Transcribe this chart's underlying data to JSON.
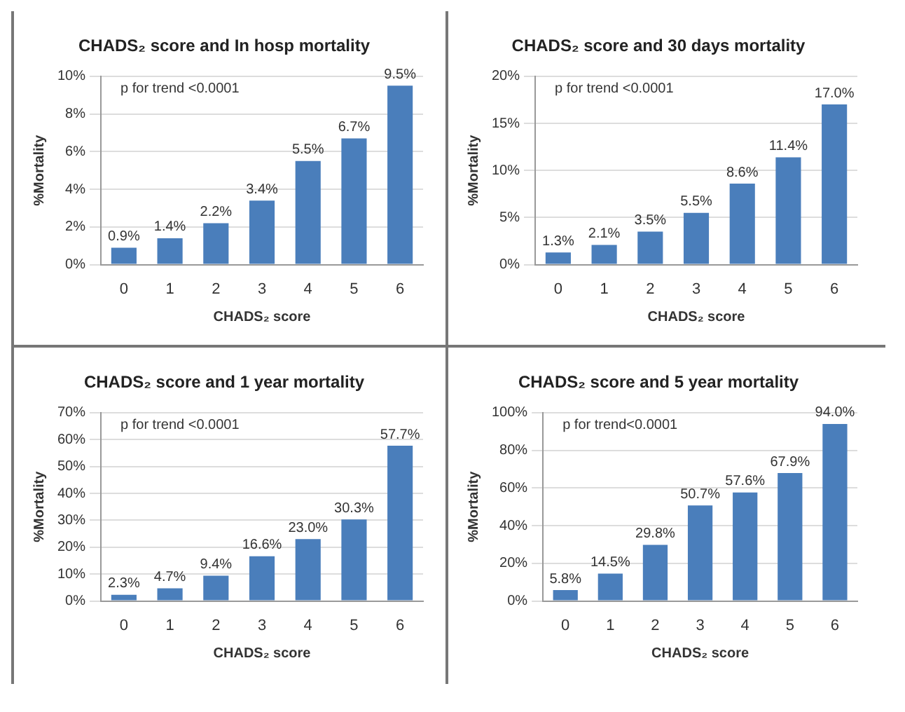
{
  "chart_data": [
    {
      "type": "bar",
      "title": "CHADS₂ score and In hosp mortality",
      "xlabel": "CHADS₂ score",
      "ylabel": "%Mortality",
      "categories": [
        "0",
        "1",
        "2",
        "3",
        "4",
        "5",
        "6"
      ],
      "values": [
        0.9,
        1.4,
        2.2,
        3.4,
        5.5,
        6.7,
        9.5
      ],
      "value_labels": [
        "0.9%",
        "1.4%",
        "2.2%",
        "3.4%",
        "5.5%",
        "6.7%",
        "9.5%"
      ],
      "color": "#4a7ebb",
      "ylim": [
        0,
        10
      ],
      "yticks": [
        {
          "value": 0,
          "label": "0%"
        },
        {
          "value": 2,
          "label": "2%"
        },
        {
          "value": 4,
          "label": "4%"
        },
        {
          "value": 6,
          "label": "6%"
        },
        {
          "value": 8,
          "label": "8%"
        },
        {
          "value": 10,
          "label": "10%"
        }
      ],
      "grid": "y",
      "annotations": [
        "p for trend <0.0001"
      ]
    },
    {
      "type": "bar",
      "title": "CHADS₂ score and 30 days mortality",
      "xlabel": "CHADS₂ score",
      "ylabel": "%Mortality",
      "categories": [
        "0",
        "1",
        "2",
        "3",
        "4",
        "5",
        "6"
      ],
      "values": [
        1.3,
        2.1,
        3.5,
        5.5,
        8.6,
        11.4,
        17.0
      ],
      "value_labels": [
        "1.3%",
        "2.1%",
        "3.5%",
        "5.5%",
        "8.6%",
        "11.4%",
        "17.0%"
      ],
      "color": "#4a7ebb",
      "ylim": [
        0,
        20
      ],
      "yticks": [
        {
          "value": 0,
          "label": "0%"
        },
        {
          "value": 5,
          "label": "5%"
        },
        {
          "value": 10,
          "label": "10%"
        },
        {
          "value": 15,
          "label": "15%"
        },
        {
          "value": 20,
          "label": "20%"
        }
      ],
      "grid": "y",
      "annotations": [
        "p for trend <0.0001"
      ]
    },
    {
      "type": "bar",
      "title": "CHADS₂ score and 1 year mortality",
      "xlabel": "CHADS₂ score",
      "ylabel": "%Mortality",
      "categories": [
        "0",
        "1",
        "2",
        "3",
        "4",
        "5",
        "6"
      ],
      "values": [
        2.3,
        4.7,
        9.4,
        16.6,
        23.0,
        30.3,
        57.7
      ],
      "value_labels": [
        "2.3%",
        "4.7%",
        "9.4%",
        "16.6%",
        "23.0%",
        "30.3%",
        "57.7%"
      ],
      "color": "#4a7ebb",
      "ylim": [
        0,
        70
      ],
      "yticks": [
        {
          "value": 0,
          "label": "0%"
        },
        {
          "value": 10,
          "label": "10%"
        },
        {
          "value": 20,
          "label": "20%"
        },
        {
          "value": 30,
          "label": "30%"
        },
        {
          "value": 40,
          "label": "40%"
        },
        {
          "value": 50,
          "label": "50%"
        },
        {
          "value": 60,
          "label": "60%"
        },
        {
          "value": 70,
          "label": "70%"
        }
      ],
      "grid": "y",
      "annotations": [
        "p for trend <0.0001"
      ]
    },
    {
      "type": "bar",
      "title": "CHADS₂ score and 5 year mortality",
      "xlabel": "CHADS₂ score",
      "ylabel": "%Mortality",
      "categories": [
        "0",
        "1",
        "2",
        "3",
        "4",
        "5",
        "6"
      ],
      "values": [
        5.8,
        14.5,
        29.8,
        50.7,
        57.6,
        67.9,
        94.0
      ],
      "value_labels": [
        "5.8%",
        "14.5%",
        "29.8%",
        "50.7%",
        "57.6%",
        "67.9%",
        "94.0%"
      ],
      "color": "#4a7ebb",
      "ylim": [
        0,
        100
      ],
      "yticks": [
        {
          "value": 0,
          "label": "0%"
        },
        {
          "value": 20,
          "label": "20%"
        },
        {
          "value": 40,
          "label": "40%"
        },
        {
          "value": 60,
          "label": "60%"
        },
        {
          "value": 80,
          "label": "80%"
        },
        {
          "value": 100,
          "label": "100%"
        }
      ],
      "grid": "y",
      "annotations": [
        "p for trend<0.0001"
      ]
    }
  ]
}
